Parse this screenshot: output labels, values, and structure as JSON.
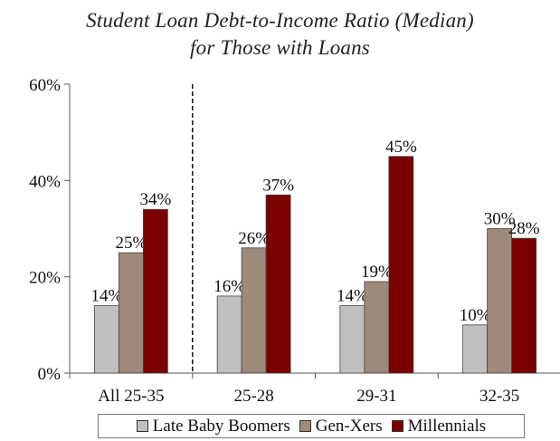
{
  "chart_data": {
    "type": "bar",
    "title_lines": [
      "Student Loan Debt-to-Income Ratio (Median)",
      "for Those with Loans"
    ],
    "categories": [
      "All 25-35",
      "25-28",
      "29-31",
      "32-35"
    ],
    "series": [
      {
        "name": "Late Baby Boomers",
        "color": "#c0c0c0",
        "values": [
          14,
          16,
          14,
          10
        ],
        "labels": [
          "14%",
          "16%",
          "14%",
          "10%"
        ]
      },
      {
        "name": "Gen-Xers",
        "color": "#9e8a7a",
        "values": [
          25,
          26,
          19,
          30
        ],
        "labels": [
          "25%",
          "26%",
          "19%",
          "30%"
        ]
      },
      {
        "name": "Millennials",
        "color": "#7b0000",
        "values": [
          34,
          37,
          45,
          28
        ],
        "labels": [
          "34%",
          "37%",
          "45%",
          "28%"
        ]
      }
    ],
    "ylim": [
      0,
      60
    ],
    "yticks": [
      0,
      20,
      40,
      60
    ],
    "ytick_labels": [
      "0%",
      "20%",
      "40%",
      "60%"
    ],
    "grid": false,
    "legend_position": "bottom",
    "annotations": [
      "dashed vertical separator between All 25-35 and 25-28"
    ]
  }
}
